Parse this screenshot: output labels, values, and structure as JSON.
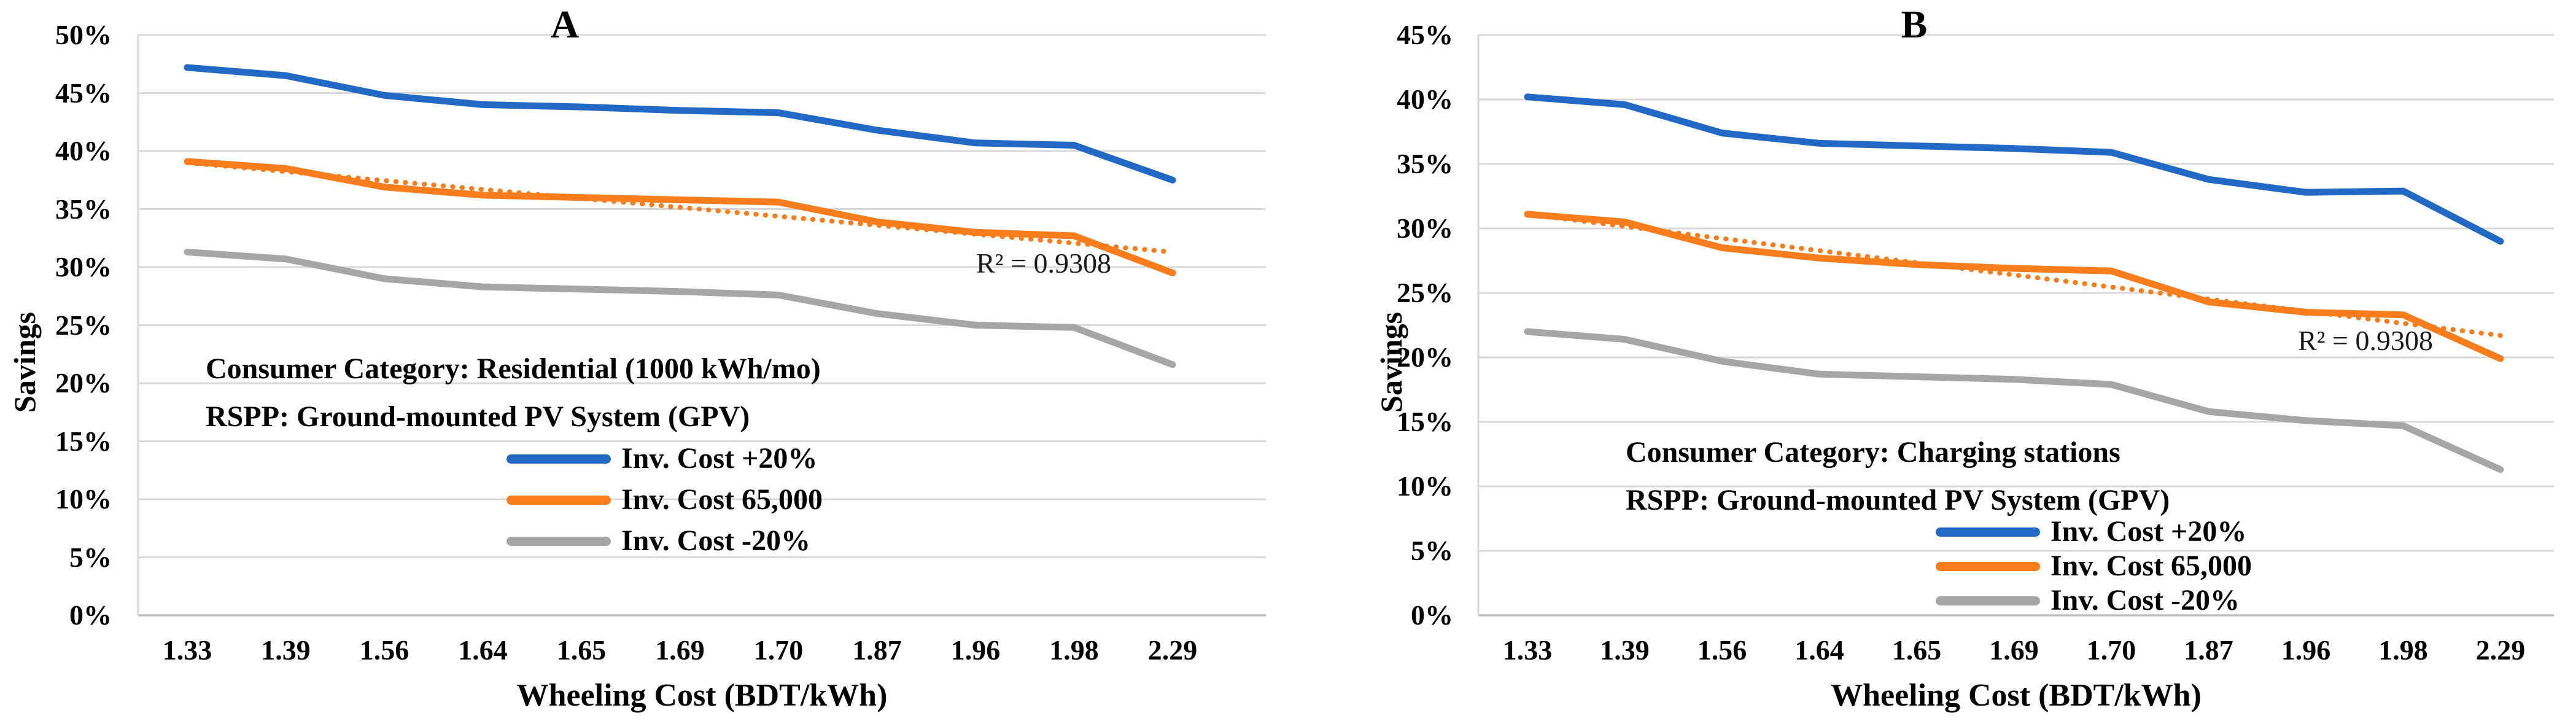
{
  "figure": {
    "background": "#ffffff",
    "grid_color": "#d9d9d9",
    "axis_color": "#bfbfbf"
  },
  "chart_data": [
    {
      "type": "line",
      "title": "A",
      "ylabel": "Savings",
      "xlabel": "Wheeling Cost (BDT/kWh)",
      "ylim": [
        0,
        50
      ],
      "y_tick_step": 5,
      "y_ticks": [
        "50%",
        "45%",
        "40%",
        "35%",
        "30%",
        "25%",
        "20%",
        "15%",
        "10%",
        "5%",
        "0%"
      ],
      "categories": [
        "1.33",
        "1.39",
        "1.56",
        "1.64",
        "1.65",
        "1.69",
        "1.70",
        "1.87",
        "1.96",
        "1.98",
        "2.29"
      ],
      "grid": true,
      "legend_position": "inside-center",
      "series": [
        {
          "name": "Inv. Cost +20%",
          "color": "#2268c5",
          "values": [
            47.2,
            46.5,
            44.8,
            44.0,
            43.8,
            43.5,
            43.3,
            41.8,
            40.7,
            40.5,
            37.5
          ]
        },
        {
          "name": "Inv. Cost 65,000",
          "color": "#f97c1d",
          "values": [
            39.1,
            38.5,
            36.9,
            36.2,
            36.0,
            35.8,
            35.6,
            33.9,
            33.0,
            32.7,
            29.5
          ]
        },
        {
          "name": "Inv. Cost -20%",
          "color": "#a6a6a6",
          "values": [
            31.3,
            30.7,
            29.0,
            28.3,
            28.1,
            27.9,
            27.6,
            26.0,
            25.0,
            24.8,
            21.6
          ]
        }
      ],
      "trendline": {
        "of_series": "Inv. Cost 65,000",
        "style": "dotted",
        "color": "#f97c1d",
        "start_value": 39.0,
        "end_value": 31.3,
        "r2_label": "R² = 0.9308",
        "r2_at_value": 30.3
      },
      "annotation": {
        "line1": "Consumer Category: Residential (1000 kWh/mo)",
        "line2": "RSPP: Ground-mounted PV System (GPV)"
      }
    },
    {
      "type": "line",
      "title": "B",
      "ylabel": "Savings",
      "xlabel": "Wheeling Cost (BDT/kWh)",
      "ylim": [
        0,
        45
      ],
      "y_tick_step": 5,
      "y_ticks": [
        "45%",
        "40%",
        "35%",
        "30%",
        "25%",
        "20%",
        "15%",
        "10%",
        "5%",
        "0%"
      ],
      "categories": [
        "1.33",
        "1.39",
        "1.56",
        "1.64",
        "1.65",
        "1.69",
        "1.70",
        "1.87",
        "1.96",
        "1.98",
        "2.29"
      ],
      "grid": true,
      "legend_position": "inside-bottom-right",
      "series": [
        {
          "name": "Inv. Cost +20%",
          "color": "#2268c5",
          "values": [
            40.2,
            39.6,
            37.4,
            36.6,
            36.4,
            36.2,
            35.9,
            33.8,
            32.8,
            32.9,
            29.0
          ]
        },
        {
          "name": "Inv. Cost 65,000",
          "color": "#f97c1d",
          "values": [
            31.1,
            30.5,
            28.5,
            27.7,
            27.2,
            26.9,
            26.7,
            24.3,
            23.5,
            23.3,
            19.9
          ]
        },
        {
          "name": "Inv. Cost -20%",
          "color": "#a6a6a6",
          "values": [
            22.0,
            21.4,
            19.7,
            18.7,
            18.5,
            18.3,
            17.9,
            15.8,
            15.1,
            14.7,
            11.3
          ]
        }
      ],
      "trendline": {
        "of_series": "Inv. Cost 65,000",
        "style": "dotted",
        "color": "#f97c1d",
        "start_value": 31.1,
        "end_value": 21.7,
        "r2_label": "R² = 0.9308",
        "r2_at_value": 21.3
      },
      "annotation": {
        "line1": "Consumer Category: Charging stations",
        "line2": "RSPP: Ground-mounted PV System (GPV)"
      }
    }
  ]
}
